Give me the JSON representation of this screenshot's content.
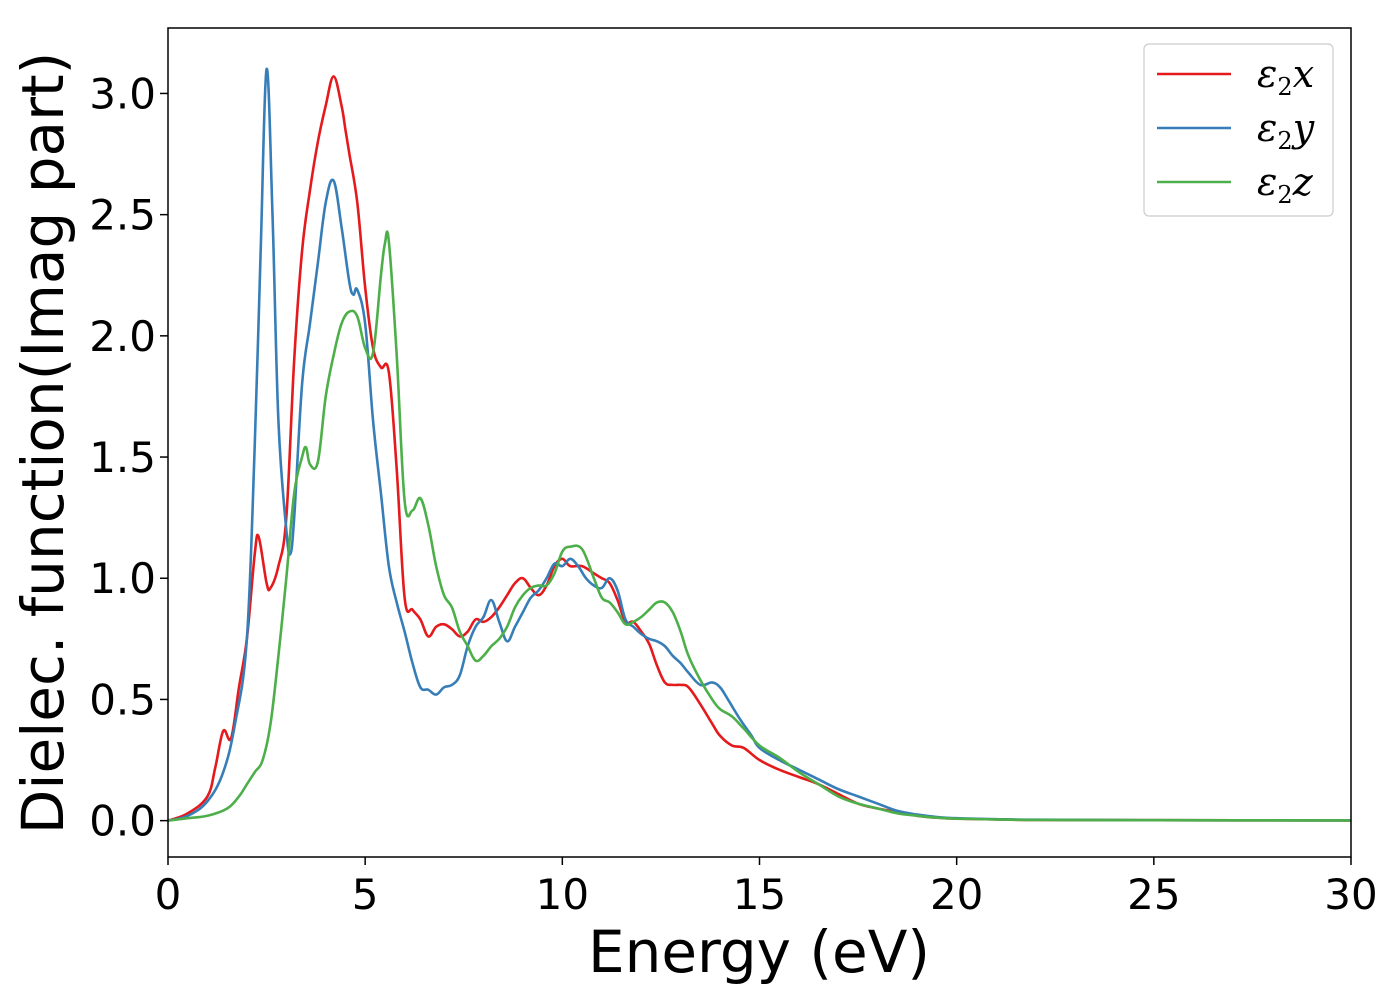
{
  "chart_data": {
    "type": "line",
    "title": "",
    "xlabel": "Energy (eV)",
    "ylabel": "Dielec. function(Imag part)",
    "xlim": [
      0,
      30
    ],
    "ylim": [
      -0.15,
      3.27
    ],
    "xticks": [
      0,
      5,
      10,
      15,
      20,
      25,
      30
    ],
    "xtick_labels": [
      "0",
      "5",
      "10",
      "15",
      "20",
      "25",
      "30"
    ],
    "yticks": [
      0.0,
      0.5,
      1.0,
      1.5,
      2.0,
      2.5,
      3.0
    ],
    "ytick_labels": [
      "0.0",
      "0.5",
      "1.0",
      "1.5",
      "2.0",
      "2.5",
      "3.0"
    ],
    "grid": false,
    "legend_position": "top-right",
    "series": [
      {
        "name": "ε2x",
        "legend_main": "ε",
        "legend_sub": "2",
        "legend_var": "x",
        "color": "#e41a1c",
        "x": [
          0,
          0.5,
          1.0,
          1.2,
          1.4,
          1.6,
          1.8,
          2.0,
          2.2,
          2.3,
          2.5,
          2.6,
          2.8,
          3.0,
          3.2,
          3.4,
          3.6,
          3.8,
          4.0,
          4.2,
          4.4,
          4.5,
          4.6,
          4.8,
          5.0,
          5.2,
          5.4,
          5.6,
          5.8,
          6.0,
          6.2,
          6.4,
          6.6,
          6.8,
          7.0,
          7.2,
          7.4,
          7.6,
          7.8,
          8.0,
          8.2,
          8.4,
          8.6,
          8.8,
          9.0,
          9.2,
          9.4,
          9.6,
          9.8,
          10.0,
          10.2,
          10.5,
          10.8,
          11.0,
          11.2,
          11.4,
          11.6,
          11.8,
          12.0,
          12.2,
          12.4,
          12.6,
          12.8,
          13.0,
          13.2,
          13.5,
          13.8,
          14.0,
          14.3,
          14.6,
          15.0,
          15.5,
          16.0,
          16.5,
          17.0,
          17.5,
          18.0,
          18.5,
          19.0,
          19.5,
          20.0,
          21.0,
          22.0,
          25.0,
          30.0
        ],
        "y": [
          0.0,
          0.03,
          0.1,
          0.22,
          0.37,
          0.34,
          0.55,
          0.75,
          1.1,
          1.17,
          0.98,
          0.96,
          1.05,
          1.25,
          1.9,
          2.35,
          2.6,
          2.8,
          2.95,
          3.07,
          2.95,
          2.85,
          2.75,
          2.55,
          2.2,
          1.95,
          1.87,
          1.85,
          1.45,
          0.92,
          0.87,
          0.83,
          0.76,
          0.8,
          0.81,
          0.79,
          0.76,
          0.78,
          0.83,
          0.82,
          0.84,
          0.88,
          0.93,
          0.98,
          1.0,
          0.96,
          0.93,
          0.97,
          1.05,
          1.08,
          1.05,
          1.05,
          1.02,
          1.0,
          0.98,
          0.91,
          0.82,
          0.82,
          0.78,
          0.73,
          0.64,
          0.57,
          0.56,
          0.56,
          0.55,
          0.48,
          0.4,
          0.35,
          0.31,
          0.3,
          0.25,
          0.21,
          0.18,
          0.15,
          0.11,
          0.07,
          0.05,
          0.035,
          0.02,
          0.012,
          0.008,
          0.005,
          0.003,
          0.002,
          0.001
        ]
      },
      {
        "name": "ε2y",
        "legend_main": "ε",
        "legend_sub": "2",
        "legend_var": "y",
        "color": "#377eb8",
        "x": [
          0,
          0.5,
          1.0,
          1.4,
          1.7,
          2.0,
          2.2,
          2.35,
          2.5,
          2.65,
          2.8,
          3.0,
          3.1,
          3.2,
          3.4,
          3.6,
          3.8,
          4.0,
          4.2,
          4.4,
          4.6,
          4.7,
          4.8,
          5.0,
          5.2,
          5.4,
          5.6,
          5.8,
          6.0,
          6.2,
          6.4,
          6.6,
          6.8,
          7.0,
          7.2,
          7.4,
          7.6,
          7.8,
          8.0,
          8.2,
          8.4,
          8.6,
          8.8,
          9.0,
          9.2,
          9.4,
          9.6,
          9.8,
          10.0,
          10.2,
          10.4,
          10.6,
          10.8,
          11.0,
          11.2,
          11.4,
          11.6,
          11.8,
          12.0,
          12.2,
          12.4,
          12.6,
          12.8,
          13.0,
          13.2,
          13.5,
          13.8,
          14.0,
          14.2,
          14.5,
          14.8,
          15.0,
          15.5,
          16.0,
          16.5,
          17.0,
          17.5,
          18.0,
          18.5,
          19.0,
          19.5,
          20.0,
          21.0,
          22.0,
          25.0,
          30.0
        ],
        "y": [
          0.0,
          0.02,
          0.08,
          0.2,
          0.4,
          0.75,
          1.55,
          2.35,
          3.1,
          2.5,
          1.65,
          1.2,
          1.1,
          1.25,
          1.8,
          2.05,
          2.3,
          2.55,
          2.64,
          2.45,
          2.22,
          2.17,
          2.19,
          2.05,
          1.65,
          1.35,
          1.05,
          0.9,
          0.78,
          0.65,
          0.55,
          0.54,
          0.52,
          0.55,
          0.56,
          0.6,
          0.72,
          0.8,
          0.84,
          0.91,
          0.82,
          0.74,
          0.8,
          0.86,
          0.92,
          0.95,
          1.0,
          1.06,
          1.05,
          1.08,
          1.05,
          1.0,
          0.97,
          0.96,
          1.0,
          0.95,
          0.83,
          0.8,
          0.77,
          0.75,
          0.74,
          0.72,
          0.68,
          0.65,
          0.61,
          0.56,
          0.57,
          0.55,
          0.5,
          0.42,
          0.35,
          0.3,
          0.25,
          0.21,
          0.17,
          0.13,
          0.1,
          0.07,
          0.04,
          0.025,
          0.015,
          0.01,
          0.006,
          0.004,
          0.002,
          0.001
        ]
      },
      {
        "name": "ε2z",
        "legend_main": "ε",
        "legend_sub": "2",
        "legend_var": "z",
        "color": "#4daf4a",
        "x": [
          0,
          0.5,
          1.0,
          1.5,
          1.8,
          2.0,
          2.2,
          2.4,
          2.6,
          2.8,
          3.0,
          3.2,
          3.4,
          3.5,
          3.6,
          3.8,
          4.0,
          4.2,
          4.4,
          4.6,
          4.8,
          5.0,
          5.2,
          5.4,
          5.5,
          5.6,
          5.8,
          6.0,
          6.2,
          6.4,
          6.6,
          6.8,
          7.0,
          7.2,
          7.4,
          7.6,
          7.8,
          8.0,
          8.2,
          8.4,
          8.6,
          8.8,
          9.0,
          9.2,
          9.4,
          9.6,
          9.8,
          10.0,
          10.2,
          10.5,
          10.8,
          11.0,
          11.2,
          11.4,
          11.6,
          11.8,
          12.0,
          12.2,
          12.4,
          12.6,
          12.8,
          13.0,
          13.2,
          13.5,
          13.8,
          14.0,
          14.3,
          14.6,
          15.0,
          15.5,
          16.0,
          16.5,
          17.0,
          17.5,
          18.0,
          18.5,
          19.0,
          19.5,
          20.0,
          21.0,
          22.0,
          25.0,
          30.0
        ],
        "y": [
          0.0,
          0.01,
          0.02,
          0.05,
          0.1,
          0.15,
          0.2,
          0.25,
          0.4,
          0.68,
          1.0,
          1.35,
          1.5,
          1.54,
          1.47,
          1.48,
          1.75,
          1.92,
          2.05,
          2.1,
          2.08,
          1.95,
          1.93,
          2.25,
          2.38,
          2.39,
          1.92,
          1.32,
          1.28,
          1.33,
          1.22,
          1.05,
          0.93,
          0.88,
          0.78,
          0.72,
          0.66,
          0.68,
          0.72,
          0.75,
          0.8,
          0.88,
          0.93,
          0.96,
          0.97,
          0.97,
          1.02,
          1.11,
          1.13,
          1.12,
          1.0,
          0.92,
          0.9,
          0.86,
          0.81,
          0.82,
          0.84,
          0.87,
          0.9,
          0.9,
          0.86,
          0.78,
          0.68,
          0.58,
          0.5,
          0.46,
          0.43,
          0.38,
          0.31,
          0.26,
          0.2,
          0.15,
          0.1,
          0.07,
          0.05,
          0.03,
          0.02,
          0.012,
          0.008,
          0.005,
          0.003,
          0.002,
          0.001
        ]
      }
    ]
  }
}
